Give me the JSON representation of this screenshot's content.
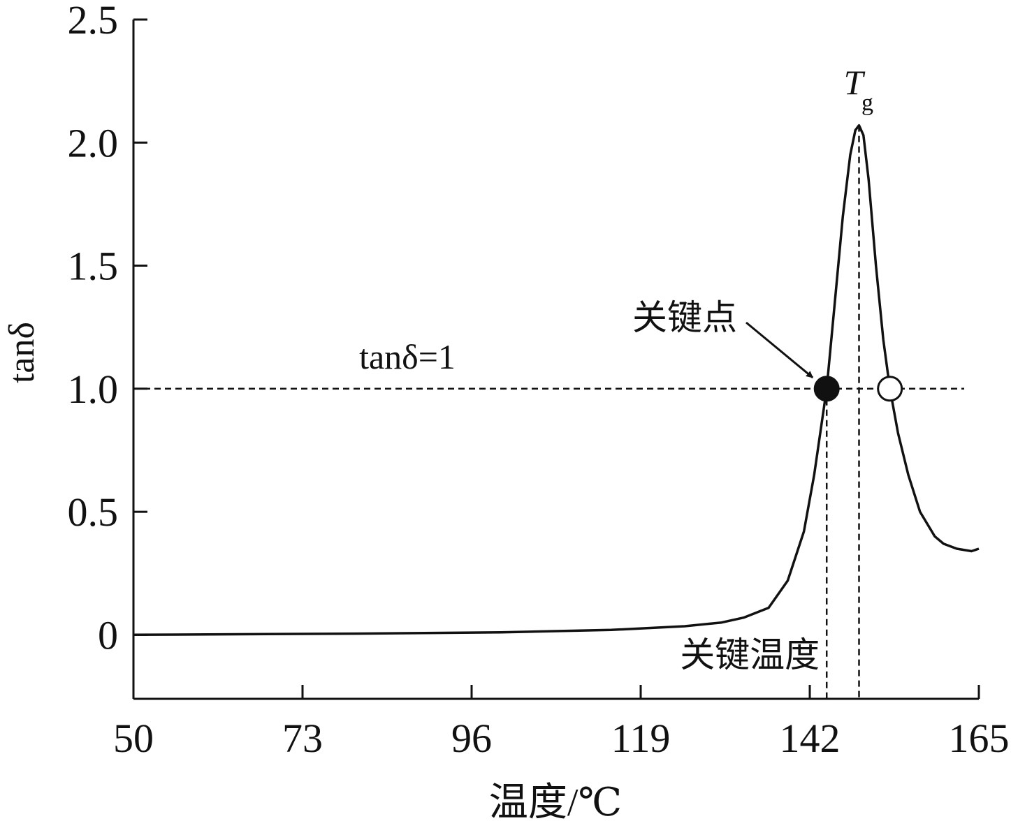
{
  "chart_data": {
    "type": "line",
    "xlabel": "温度/℃",
    "ylabel": "tanδ",
    "x": [
      50,
      80,
      100,
      115,
      125,
      130,
      133,
      136.4,
      139,
      141.2,
      142.6,
      144.3,
      145.4,
      146.5,
      147.5,
      148.2,
      148.7,
      149.3,
      150,
      151,
      152,
      152.9,
      154,
      155.4,
      157,
      159,
      160.2,
      162,
      164,
      165
    ],
    "series": [
      {
        "color": "#111111",
        "values": [
          0,
          0.005,
          0.01,
          0.02,
          0.035,
          0.05,
          0.07,
          0.11,
          0.22,
          0.42,
          0.65,
          1.0,
          1.35,
          1.7,
          1.95,
          2.05,
          2.07,
          2.03,
          1.85,
          1.5,
          1.2,
          1.0,
          0.82,
          0.65,
          0.5,
          0.4,
          0.37,
          0.35,
          0.34,
          0.35
        ]
      }
    ],
    "xlim": [
      50,
      165
    ],
    "xticks": [
      50,
      73,
      96,
      119,
      142,
      165
    ],
    "ylim": [
      -0.26,
      2.5
    ],
    "yticks": [
      0,
      0.5,
      {
        "value": 1,
        "label": "1.0"
      },
      1.5,
      {
        "value": 2,
        "label": "2.0"
      },
      2.5
    ],
    "grid": false,
    "hline": {
      "y": 1,
      "label": "tanδ=1"
    },
    "markers": [
      {
        "x": 144.3,
        "y": 1,
        "filled": true,
        "label": "关键点"
      },
      {
        "x": 152.9,
        "y": 1,
        "filled": false
      }
    ],
    "vlines": [
      {
        "x": 144.3,
        "from_y": 1,
        "label": "关键温度"
      },
      {
        "x": 148.7,
        "from_y": 2.07,
        "label": "T",
        "subscript": "g"
      }
    ]
  }
}
